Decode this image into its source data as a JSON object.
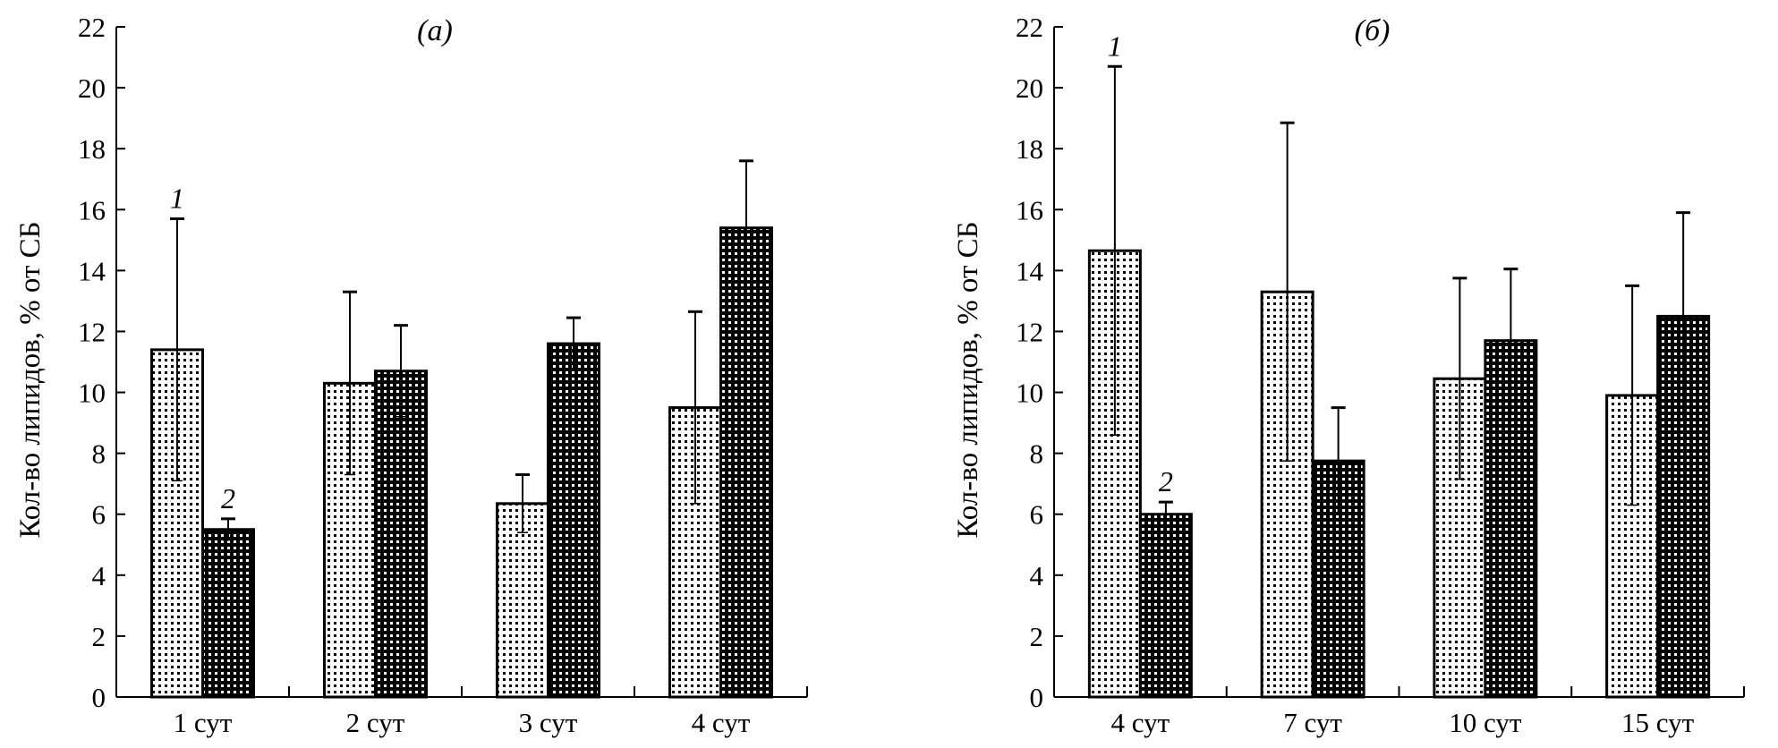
{
  "chart_data": [
    {
      "type": "bar",
      "title": "(a)",
      "xlabel": "",
      "ylabel": "Кол-во липидов, % от СБ",
      "ylim": [
        0,
        22
      ],
      "yticks": [
        "0",
        "2",
        "4",
        "6",
        "8",
        "10",
        "12",
        "14",
        "16",
        "18",
        "20",
        "22"
      ],
      "categories": [
        "1 сут",
        "2 сут",
        "3 сут",
        "4 сут"
      ],
      "series": [
        {
          "name": "1",
          "pattern": "light-dots",
          "values": [
            11.4,
            10.3,
            6.35,
            9.5
          ],
          "errors": [
            4.3,
            3.0,
            0.95,
            3.15
          ]
        },
        {
          "name": "2",
          "pattern": "dark-dots",
          "values": [
            5.5,
            10.7,
            11.6,
            15.4
          ],
          "errors": [
            0.35,
            1.5,
            0.85,
            2.2
          ]
        }
      ],
      "grid": false
    },
    {
      "type": "bar",
      "title": "(б)",
      "xlabel": "",
      "ylabel": "Кол-во липидов, % от СБ",
      "ylim": [
        0,
        22
      ],
      "yticks": [
        "0",
        "2",
        "4",
        "6",
        "8",
        "10",
        "12",
        "14",
        "16",
        "18",
        "20",
        "22"
      ],
      "categories": [
        "4 сут",
        "7 сут",
        "10 сут",
        "15 сут"
      ],
      "series": [
        {
          "name": "1",
          "pattern": "light-dots",
          "values": [
            14.65,
            13.3,
            10.45,
            9.9
          ],
          "errors": [
            6.05,
            5.55,
            3.3,
            3.6
          ]
        },
        {
          "name": "2",
          "pattern": "dark-dots",
          "values": [
            6.0,
            7.75,
            11.7,
            12.5
          ],
          "errors": [
            0.4,
            1.75,
            2.35,
            3.4
          ]
        }
      ],
      "grid": false
    }
  ]
}
